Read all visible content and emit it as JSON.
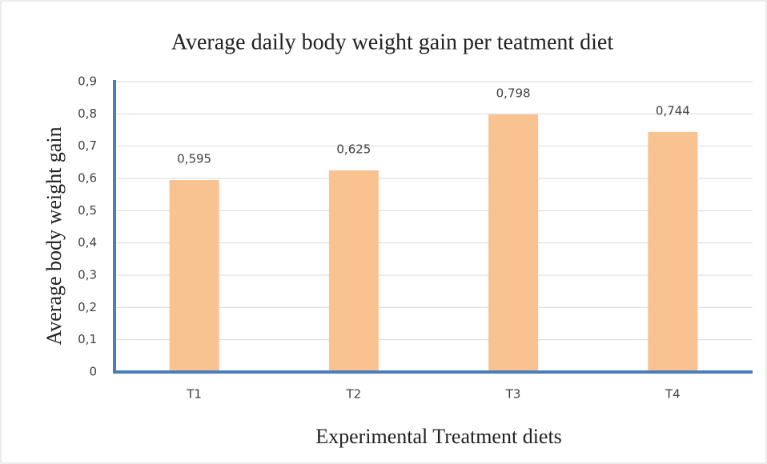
{
  "chart_data": {
    "type": "bar",
    "title": "Average daily body weight gain per teatment diet",
    "x_label": "Experimental Treatment diets",
    "y_label": "Average body weight gain",
    "categories": [
      "T1",
      "T2",
      "T3",
      "T4"
    ],
    "values": [
      0.595,
      0.625,
      0.798,
      0.744
    ],
    "value_labels": [
      "0,595",
      "0,625",
      "0,798",
      "0,744"
    ],
    "color": "#f8c291",
    "ylim": [
      0,
      0.9
    ],
    "yticks": [
      0,
      {
        "value": 0.1,
        "label": "0,1"
      },
      {
        "value": 0.2,
        "label": "0,2"
      },
      {
        "value": 0.3,
        "label": "0,3"
      },
      {
        "value": 0.4,
        "label": "0,4"
      },
      {
        "value": 0.5,
        "label": "0,5"
      },
      {
        "value": 0.6,
        "label": "0,6"
      },
      {
        "value": 0.7,
        "label": "0,7"
      },
      {
        "value": 0.8,
        "label": "0,8"
      },
      {
        "value": 0.9,
        "label": "0,9"
      }
    ],
    "grid": true
  }
}
